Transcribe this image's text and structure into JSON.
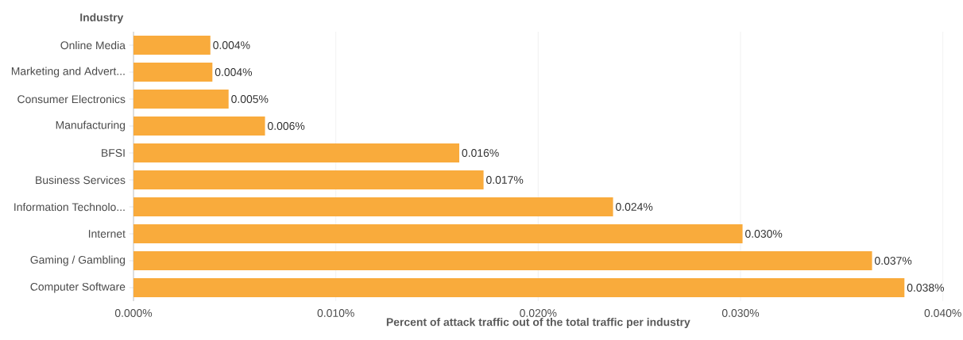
{
  "chart_data": {
    "type": "bar",
    "orientation": "horizontal",
    "xlabel": "Percent of attack traffic out of the total traffic per industry",
    "ylabel": "Industry",
    "categories": [
      "Online Media",
      "Marketing and Advert...",
      "Consumer Electronics",
      "Manufacturing",
      "BFSI",
      "Business Services",
      "Information Technolo...",
      "Internet",
      "Gaming / Gambling",
      "Computer Software"
    ],
    "values": [
      0.0038,
      0.0039,
      0.0047,
      0.0065,
      0.0161,
      0.0173,
      0.0237,
      0.0301,
      0.0365,
      0.0381
    ],
    "value_labels": [
      "0.004%",
      "0.004%",
      "0.005%",
      "0.006%",
      "0.016%",
      "0.017%",
      "0.024%",
      "0.030%",
      "0.037%",
      "0.038%"
    ],
    "color": "#f9ab3c",
    "xlim": [
      0,
      0.04
    ],
    "xticks": [
      {
        "value": 0,
        "label": "0.000%"
      },
      {
        "value": 0.01,
        "label": "0.010%"
      },
      {
        "value": 0.02,
        "label": "0.020%"
      },
      {
        "value": 0.03,
        "label": "0.030%"
      },
      {
        "value": 0.04,
        "label": "0.040%"
      }
    ],
    "grid": "x"
  }
}
